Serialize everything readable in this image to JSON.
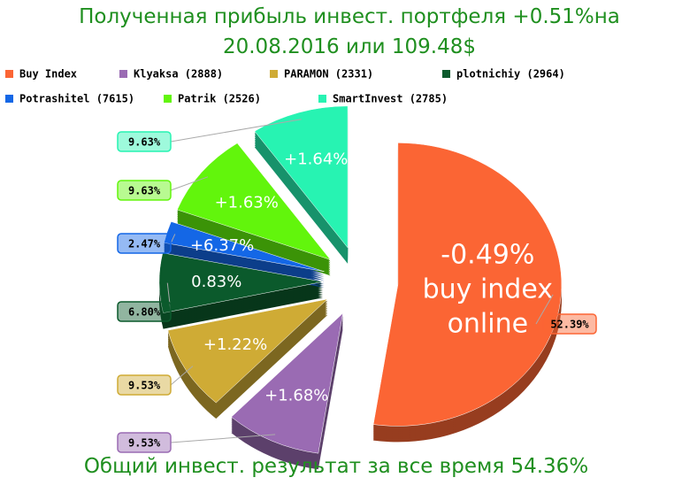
{
  "chart_data": {
    "type": "pie",
    "title": "Полученная прибыль инвест. портфеля +0.51%на 20.08.2016 или 109.48$",
    "footer": "Общий инвест. результат за все время 54.36%",
    "categories": [
      "Buy Index",
      "Klyaksa (2888)",
      "PARAMON (2331)",
      "plotnichiy (2964)",
      "Potrashitel (7615)",
      "Patrik (2526)",
      "SmartInvest (2785)"
    ],
    "values": [
      52.39,
      9.53,
      9.53,
      6.8,
      2.47,
      9.63,
      9.63
    ],
    "value_labels": [
      "52.39%",
      "9.53%",
      "9.53%",
      "6.80%",
      "2.47%",
      "9.63%",
      "9.63%"
    ],
    "colors": [
      "#fb6534",
      "#9a6bb3",
      "#cfab35",
      "#0b5a2c",
      "#1467e6",
      "#62f50c",
      "#27f3b2"
    ],
    "slice_labels": [
      [
        "-0.49%",
        "buy index",
        "online"
      ],
      [
        "+1.68%"
      ],
      [
        "+1.22%"
      ],
      [
        "0.83%"
      ],
      [
        "+6.37%"
      ],
      [
        "+1.63%"
      ],
      [
        "+1.64%"
      ]
    ]
  }
}
